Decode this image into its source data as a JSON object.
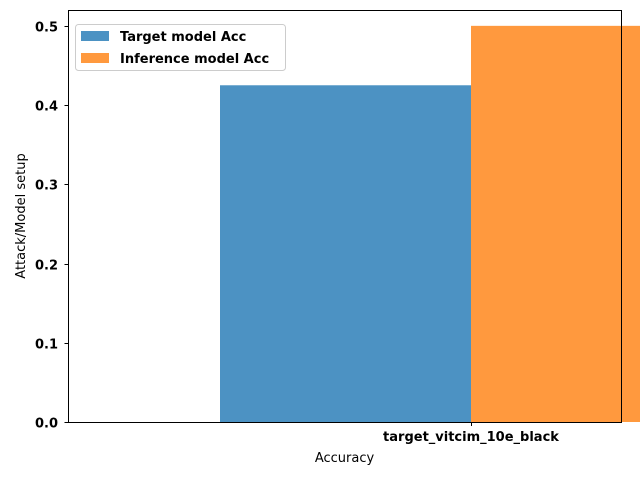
{
  "chart_data": {
    "type": "bar",
    "categories": [
      "target_vitcim_10e_black"
    ],
    "series": [
      {
        "name": "Target model Acc",
        "values": [
          0.425
        ],
        "color": "#1f77b4"
      },
      {
        "name": "Inference model Acc",
        "values": [
          0.5
        ],
        "color": "#ff7f0e"
      }
    ],
    "xlabel": "Accuracy",
    "ylabel": "Attack/Model setup",
    "ylim": [
      0,
      0.52
    ],
    "yticks": [
      0.0,
      0.1,
      0.2,
      0.3,
      0.4,
      0.5
    ],
    "ytick_labels": [
      "0.0",
      "0.1",
      "0.2",
      "0.3",
      "0.4",
      "0.5"
    ],
    "legend_position": "top-left",
    "grid": false
  }
}
